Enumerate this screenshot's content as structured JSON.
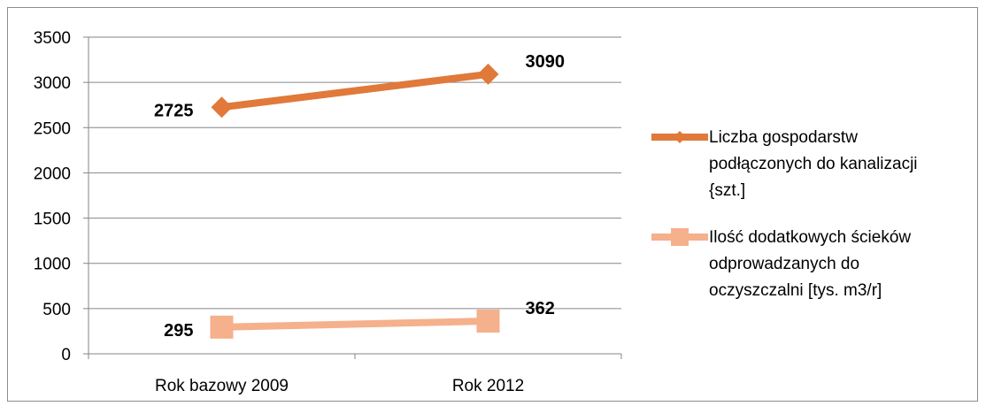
{
  "chart_data": {
    "type": "line",
    "categories": [
      "Rok bazowy 2009",
      "Rok 2012"
    ],
    "series": [
      {
        "name": "Liczba gospodarstw podłączonych do kanalizacji {szt.]",
        "legend_lines": [
          "Liczba gospodarstw",
          "podłączonych do kanalizacji",
          "{szt.]"
        ],
        "values": [
          2725,
          3090
        ],
        "data_labels": [
          "2725",
          "3090"
        ],
        "color": "#e0793a",
        "marker": "diamond"
      },
      {
        "name": "Ilość dodatkowych ścieków odprowadzanych do oczyszczalni [tys. m3/r]",
        "legend_lines": [
          "Ilość dodatkowych ścieków",
          "odprowadzanych do",
          "oczyszczalni [tys. m3/r]"
        ],
        "values": [
          295,
          362
        ],
        "data_labels": [
          "295",
          "362"
        ],
        "color": "#f5b08c",
        "marker": "square"
      }
    ],
    "ylim": [
      0,
      3500
    ],
    "yticks": [
      0,
      500,
      1000,
      1500,
      2000,
      2500,
      3000,
      3500
    ],
    "ytick_labels": [
      "0",
      "500",
      "1000",
      "1500",
      "2000",
      "2500",
      "3000",
      "3500"
    ],
    "grid": "horizontal",
    "legend": "right",
    "title": "",
    "xlabel": "",
    "ylabel": ""
  }
}
